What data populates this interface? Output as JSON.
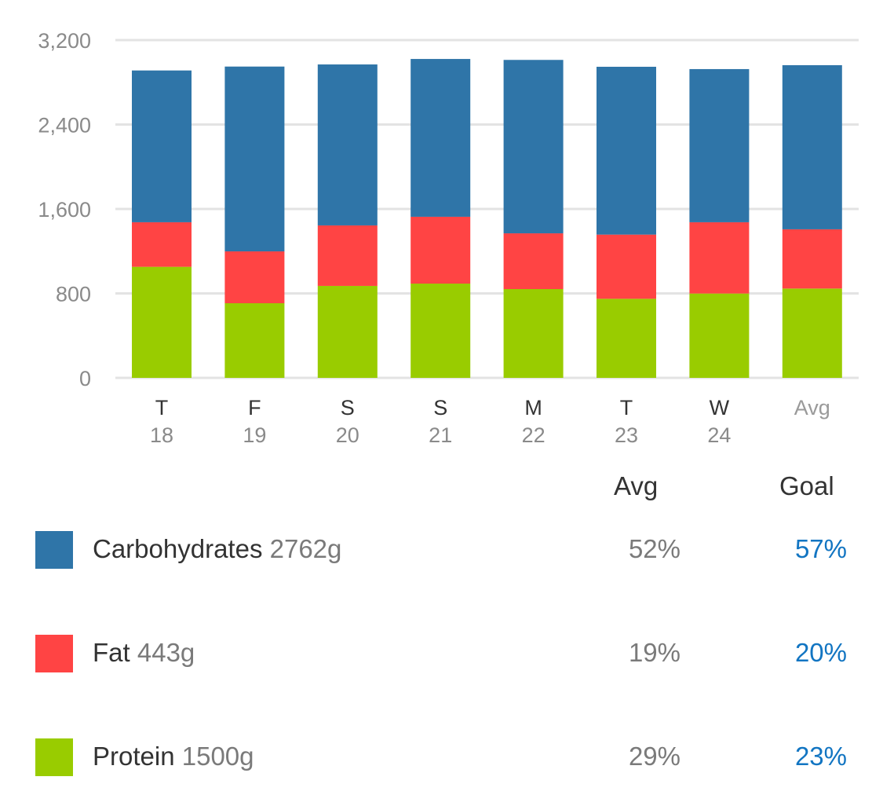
{
  "chart_data": {
    "type": "bar",
    "stacked": true,
    "title": "",
    "xlabel": "",
    "ylabel": "",
    "ylim": [
      0,
      3200
    ],
    "yticks": [
      0,
      800,
      1600,
      2400,
      3200
    ],
    "ytick_labels": [
      "0",
      "800",
      "1,600",
      "2,400",
      "3,200"
    ],
    "grid": true,
    "categories": [
      {
        "day": "T",
        "date": "18"
      },
      {
        "day": "F",
        "date": "19"
      },
      {
        "day": "S",
        "date": "20"
      },
      {
        "day": "S",
        "date": "21"
      },
      {
        "day": "M",
        "date": "22"
      },
      {
        "day": "T",
        "date": "23"
      },
      {
        "day": "W",
        "date": "24"
      },
      {
        "day": "Avg",
        "date": ""
      }
    ],
    "series": [
      {
        "name": "Protein",
        "color": "#99cc00",
        "values": [
          1052,
          707,
          871,
          893,
          841,
          749,
          799,
          846
        ]
      },
      {
        "name": "Fat",
        "color": "#ff4444",
        "values": [
          422,
          491,
          573,
          633,
          528,
          608,
          675,
          561
        ]
      },
      {
        "name": "Carbohydrates",
        "color": "#2f75a8",
        "values": [
          1438,
          1751,
          1525,
          1495,
          1643,
          1590,
          1451,
          1555
        ]
      }
    ],
    "units": "calories"
  },
  "summary": {
    "avg_header": "Avg",
    "goal_header": "Goal",
    "rows": [
      {
        "name": "Carbohydrates",
        "grams": "2762g",
        "avg": "52%",
        "goal": "57%",
        "color": "#2f75a8"
      },
      {
        "name": "Fat",
        "grams": "443g",
        "avg": "19%",
        "goal": "20%",
        "color": "#ff4444"
      },
      {
        "name": "Protein",
        "grams": "1500g",
        "avg": "29%",
        "goal": "23%",
        "color": "#99cc00"
      }
    ]
  }
}
